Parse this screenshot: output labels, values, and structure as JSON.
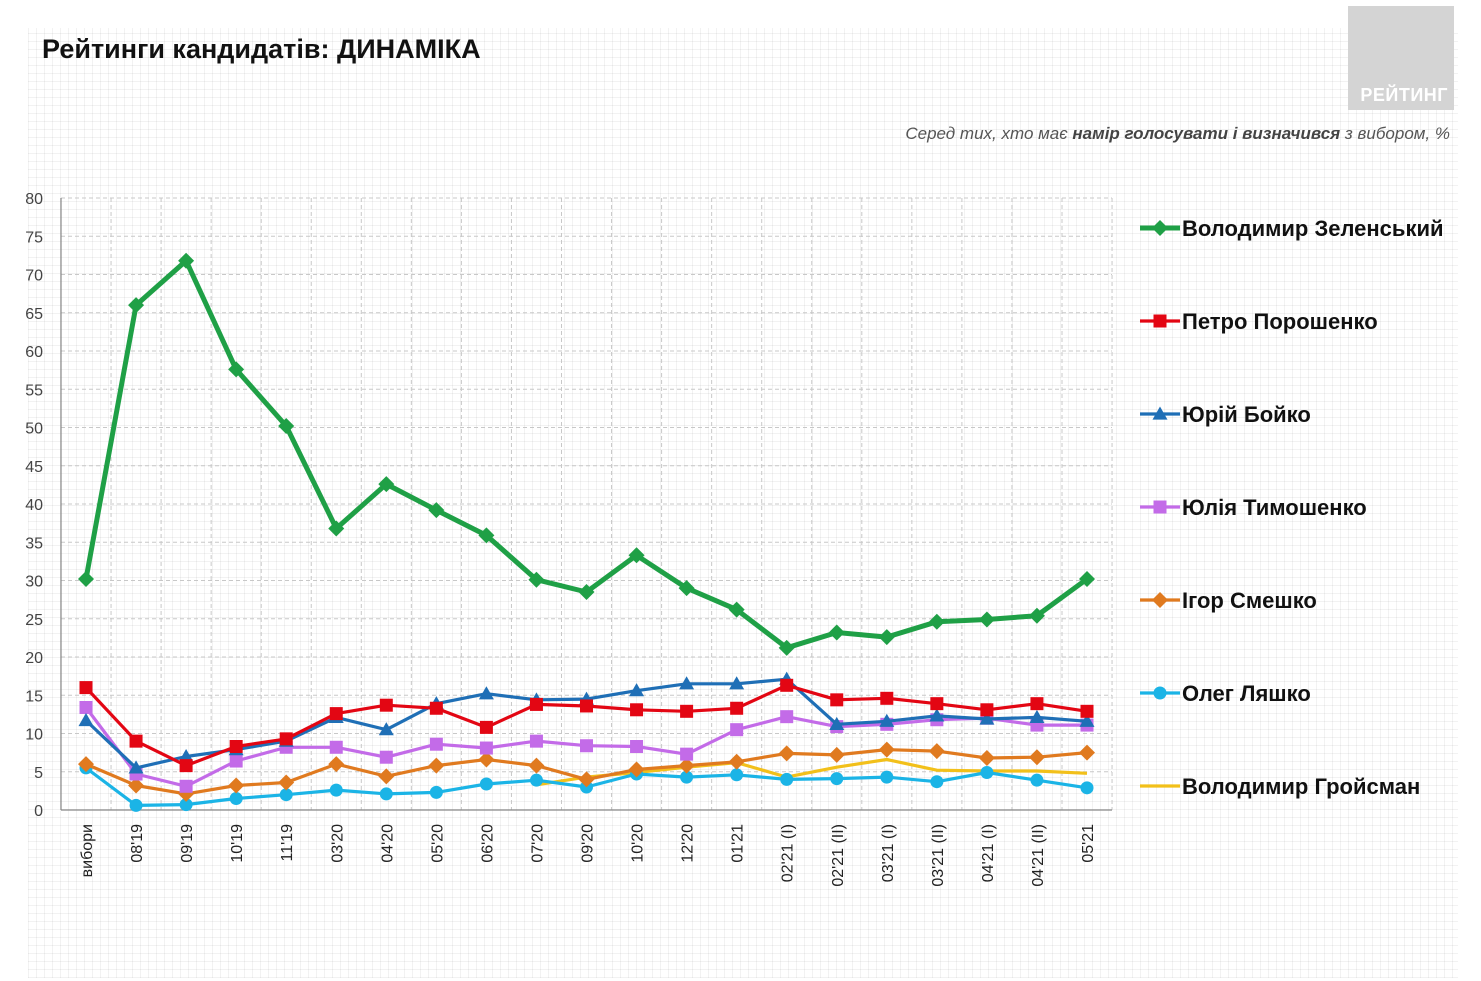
{
  "header": {
    "title": "Рейтинги кандидатів: ДИНАМІКА",
    "brand": "РЕЙТИНГ",
    "subtitle_pre": "Серед тих, хто має ",
    "subtitle_bold": "намір голосувати і визначився",
    "subtitle_post": " з вибором, %"
  },
  "colors": {
    "zelensky": "#1fa046",
    "poroshenko": "#e30613",
    "boyko": "#1f6fb6",
    "tymoshenko": "#c36be8",
    "smeshko": "#e07a1f",
    "lyashko": "#1bb4e6",
    "groysman": "#f2c01a"
  },
  "chart_data": {
    "type": "line",
    "title": "Рейтинги кандидатів: ДИНАМІКА",
    "ylim": [
      0,
      80
    ],
    "yticks": [
      0,
      5,
      10,
      15,
      20,
      25,
      30,
      35,
      40,
      45,
      50,
      55,
      60,
      65,
      70,
      75,
      80
    ],
    "grid": true,
    "legend_position": "right",
    "categories": [
      "вибори",
      "08'19",
      "09'19",
      "10'19",
      "11'19",
      "03'20",
      "04'20",
      "05'20",
      "06'20",
      "07'20",
      "09'20",
      "10'20",
      "12'20",
      "01'21",
      "02'21 (І)",
      "02'21 (ІІ)",
      "03'21 (І)",
      "03'21 (ІІ)",
      "04'21 (І)",
      "04'21 (ІІ)",
      "05'21"
    ],
    "series": [
      {
        "name": "Володимир Зеленський",
        "key": "zelensky",
        "marker": "diamond",
        "values": [
          30.2,
          66,
          71.8,
          57.6,
          50.2,
          36.8,
          42.6,
          39.2,
          35.9,
          30.1,
          28.5,
          33.3,
          29.0,
          26.2,
          21.2,
          23.2,
          22.6,
          24.6,
          24.9,
          25.4,
          30.2
        ]
      },
      {
        "name": "Петро Порошенко",
        "key": "poroshenko",
        "marker": "square",
        "values": [
          16.0,
          9.0,
          5.8,
          8.3,
          9.3,
          12.6,
          13.7,
          13.3,
          10.8,
          13.8,
          13.6,
          13.1,
          12.9,
          13.3,
          16.3,
          14.4,
          14.6,
          13.9,
          13.1,
          13.9,
          12.9
        ]
      },
      {
        "name": "Юрій Бойко",
        "key": "boyko",
        "marker": "triangle",
        "values": [
          11.7,
          5.5,
          7.0,
          7.9,
          9.0,
          12.1,
          10.5,
          13.9,
          15.2,
          14.4,
          14.5,
          15.6,
          16.5,
          16.5,
          17.1,
          11.2,
          11.6,
          12.3,
          11.9,
          12.1,
          11.6
        ]
      },
      {
        "name": "Юлія Тимошенко",
        "key": "tymoshenko",
        "marker": "square",
        "values": [
          13.4,
          4.7,
          3.1,
          6.4,
          8.2,
          8.2,
          6.9,
          8.6,
          8.1,
          9.0,
          8.4,
          8.3,
          7.3,
          10.5,
          12.2,
          10.9,
          11.2,
          11.8,
          12.0,
          11.1,
          11.1
        ]
      },
      {
        "name": "Ігор Смешко",
        "key": "smeshko",
        "marker": "diamond",
        "values": [
          6.0,
          3.2,
          2.1,
          3.2,
          3.6,
          6.0,
          4.4,
          5.8,
          6.6,
          5.8,
          4.0,
          5.3,
          5.8,
          6.3,
          7.4,
          7.2,
          7.9,
          7.7,
          6.8,
          6.9,
          7.5
        ]
      },
      {
        "name": "Олег Ляшко",
        "key": "lyashko",
        "marker": "circle",
        "values": [
          5.5,
          0.6,
          0.7,
          1.5,
          2.0,
          2.6,
          2.1,
          2.3,
          3.4,
          3.9,
          3.0,
          4.7,
          4.3,
          4.6,
          4.0,
          4.1,
          4.3,
          3.7,
          4.9,
          3.9,
          2.9
        ]
      },
      {
        "name": "Володимир Гройсман",
        "key": "groysman",
        "marker": "none",
        "values": [
          null,
          null,
          null,
          null,
          null,
          null,
          null,
          null,
          null,
          3.3,
          4.3,
          4.9,
          5.6,
          6.2,
          4.3,
          5.6,
          6.6,
          5.2,
          5.1,
          5.1,
          4.8
        ]
      }
    ]
  }
}
